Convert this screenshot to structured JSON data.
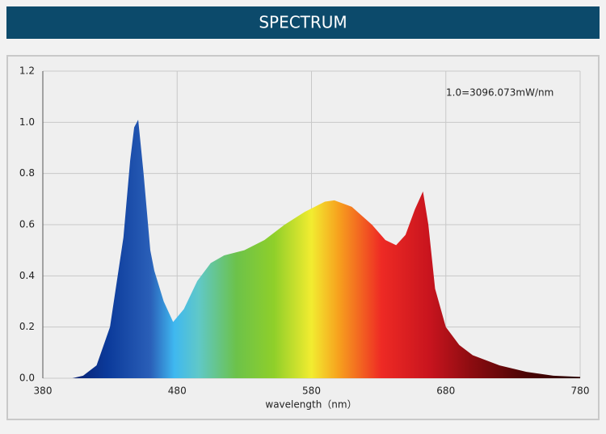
{
  "header": {
    "title": "SPECTRUM"
  },
  "chart_data": {
    "type": "area",
    "annotation": "1.0=3096.073mW/nm",
    "x_label": "wavelength（nm）",
    "x": [
      402,
      410,
      420,
      430,
      440,
      445,
      448,
      451,
      455,
      460,
      463,
      470,
      477,
      485,
      495,
      505,
      515,
      530,
      545,
      560,
      575,
      590,
      597,
      610,
      625,
      635,
      643,
      650,
      657,
      663,
      667,
      672,
      680,
      690,
      700,
      720,
      740,
      760,
      780
    ],
    "values": [
      0,
      0.01,
      0.05,
      0.2,
      0.55,
      0.85,
      0.98,
      1.01,
      0.8,
      0.5,
      0.42,
      0.3,
      0.22,
      0.27,
      0.38,
      0.45,
      0.48,
      0.5,
      0.54,
      0.6,
      0.65,
      0.69,
      0.695,
      0.67,
      0.6,
      0.54,
      0.52,
      0.56,
      0.66,
      0.73,
      0.6,
      0.35,
      0.2,
      0.13,
      0.09,
      0.05,
      0.025,
      0.01,
      0.005
    ],
    "xlim": [
      380,
      780
    ],
    "xticks": [
      380,
      480,
      580,
      680,
      780
    ],
    "ylim": [
      0,
      1.2
    ],
    "yticks": [
      {
        "value": 0,
        "label": "0.0"
      },
      0.2,
      0.4,
      0.6,
      0.8,
      {
        "value": 1,
        "label": "1.0"
      },
      1.2
    ],
    "grid": true
  }
}
